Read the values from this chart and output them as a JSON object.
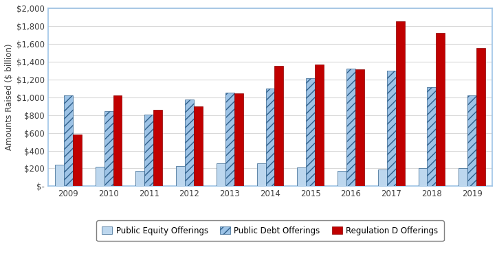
{
  "years": [
    "2009",
    "2010",
    "2011",
    "2012",
    "2013",
    "2014",
    "2015",
    "2016",
    "2017",
    "2018",
    "2019"
  ],
  "public_equity": [
    240,
    220,
    175,
    230,
    255,
    255,
    215,
    170,
    190,
    205,
    200
  ],
  "public_debt": [
    1020,
    840,
    805,
    975,
    1050,
    1100,
    1215,
    1320,
    1295,
    1115,
    1020
  ],
  "reg_d": [
    585,
    1020,
    855,
    900,
    1040,
    1350,
    1370,
    1315,
    1850,
    1720,
    1555
  ],
  "equity_color": "#bdd7ee",
  "debt_facecolor": "#9dc3e6",
  "debt_edgecolor": "#2e5f8a",
  "debt_hatch": "///",
  "reg_d_color": "#c00000",
  "reg_d_edge": "#8b0000",
  "ylabel": "Amounts Raised ($ billion)",
  "ylim": [
    0,
    2000
  ],
  "yticks": [
    0,
    200,
    400,
    600,
    800,
    1000,
    1200,
    1400,
    1600,
    1800,
    2000
  ],
  "ytick_labels": [
    "$-",
    "$200",
    "$400",
    "$600",
    "$800",
    "$1,000",
    "$1,200",
    "$1,400",
    "$1,600",
    "$1,800",
    "$2,000"
  ],
  "legend_labels": [
    "Public Equity Offerings",
    "Public Debt Offerings",
    "Regulation D Offerings"
  ],
  "fig_bg_color": "#ffffff",
  "plot_bg_color": "#ffffff",
  "plot_border_color": "#9dc3e6",
  "grid_color": "#d9d9d9",
  "bar_width": 0.22,
  "axis_fontsize": 8.5,
  "legend_fontsize": 8.5,
  "tick_color": "#404040",
  "ylabel_fontsize": 8.5
}
